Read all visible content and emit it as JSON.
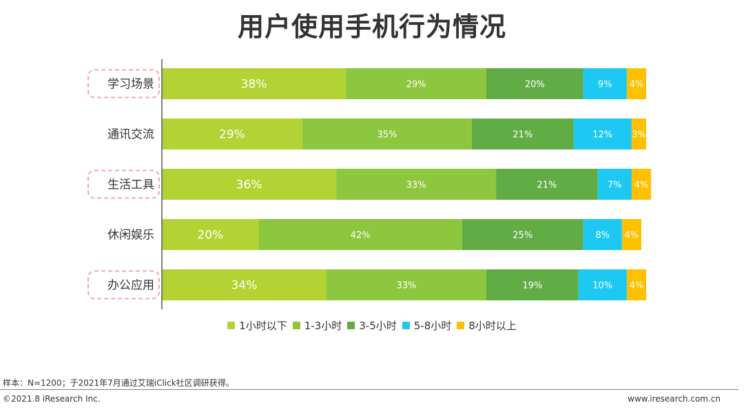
{
  "page": {
    "title": "用户使用手机行为情况",
    "source_note": "样本：N=1200；于2021年7月通过艾瑞iClick社区调研获得。",
    "copyright": "©2021.8 iResearch Inc.",
    "site_url": "www.iresearch.com.cn"
  },
  "chart_data": {
    "type": "bar",
    "orientation": "horizontal",
    "stacked": true,
    "title": "用户使用手机行为情况",
    "categories": [
      "学习场景",
      "通讯交流",
      "生活工具",
      "休闲娱乐",
      "办公应用"
    ],
    "highlighted_categories": [
      "学习场景",
      "生活工具",
      "办公应用"
    ],
    "series": [
      {
        "name": "1小时以下",
        "color": "#b3d334",
        "values": [
          38,
          29,
          36,
          20,
          34
        ],
        "labels": [
          "38%",
          "29%",
          "36%",
          "20%",
          "34%"
        ]
      },
      {
        "name": "1-3小时",
        "color": "#8dc63f",
        "values": [
          29,
          35,
          33,
          42,
          33
        ],
        "labels": [
          "29%",
          "35%",
          "33%",
          "42%",
          "33%"
        ]
      },
      {
        "name": "3-5小时",
        "color": "#62ac46",
        "values": [
          20,
          21,
          21,
          25,
          19
        ],
        "labels": [
          "20%",
          "21%",
          "21%",
          "25%",
          "19%"
        ]
      },
      {
        "name": "5-8小时",
        "color": "#1dc9f2",
        "values": [
          9,
          12,
          7,
          8,
          10
        ],
        "labels": [
          "9%",
          "12%",
          "7%",
          "8%",
          "10%"
        ]
      },
      {
        "name": "8小时以上",
        "color": "#ffc000",
        "values": [
          4,
          3,
          4,
          4,
          4
        ],
        "labels": [
          "4%",
          "3%",
          "4%",
          "4%",
          "4%"
        ]
      }
    ],
    "xlim": [
      0,
      100
    ],
    "grid": false,
    "legend_position": "bottom"
  }
}
